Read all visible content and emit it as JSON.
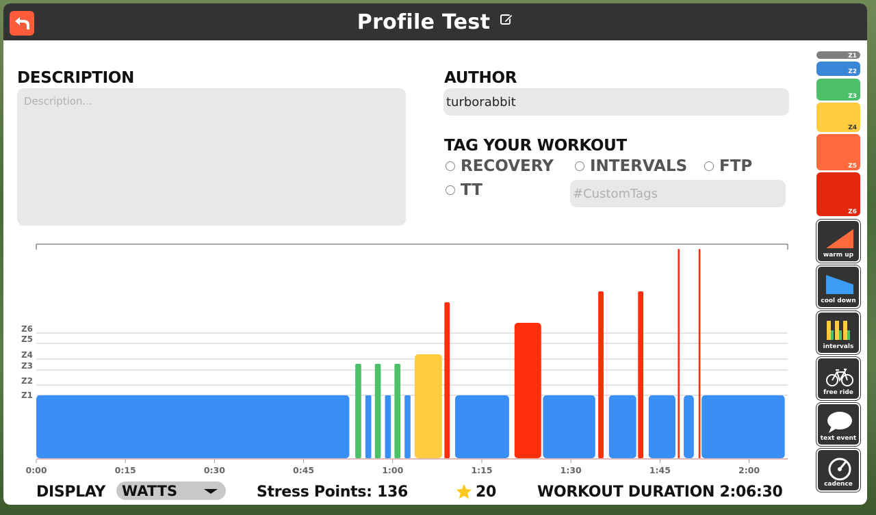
{
  "header": {
    "title": "Profile Test"
  },
  "description": {
    "label": "DESCRIPTION",
    "placeholder": "Description...",
    "value": ""
  },
  "author": {
    "label": "AUTHOR",
    "value": "turborabbit"
  },
  "tags": {
    "label": "TAG YOUR WORKOUT",
    "options": [
      "RECOVERY",
      "INTERVALS",
      "FTP",
      "TT"
    ],
    "custom_placeholder": "#CustomTags"
  },
  "footer": {
    "display_label": "DISPLAY",
    "display_value": "WATTS",
    "stress_points": "Stress Points: 136",
    "stars": "20",
    "duration": "WORKOUT DURATION 2:06:30"
  },
  "palette": {
    "zones": [
      "Z1",
      "Z2",
      "Z3",
      "Z4",
      "Z5",
      "Z6"
    ],
    "tools": [
      "warm up",
      "cool down",
      "intervals",
      "free ride",
      "text event",
      "cadence"
    ]
  },
  "colors": {
    "z1": "#7f7f7f",
    "z2": "#3a87d9",
    "z3": "#4cc069",
    "z4": "#ffcc3f",
    "z5": "#ff6a3d",
    "z6": "#e3280f",
    "bar_blue": "#3a8ff5",
    "accent": "#fc5c3a"
  },
  "chart_data": {
    "type": "bar",
    "x_unit": "minutes",
    "x_ticks": [
      "0:00",
      "0:15",
      "0:30",
      "0:45",
      "1:00",
      "1:15",
      "1:30",
      "1:45",
      "2:00"
    ],
    "y_zone_labels": [
      "Z1",
      "Z2",
      "Z3",
      "Z4",
      "Z5",
      "Z6"
    ],
    "xlim": [
      0,
      126.5
    ],
    "segments": [
      {
        "start": 0.0,
        "end": 52.7,
        "zone": "Z1",
        "level": 1.0
      },
      {
        "start": 53.7,
        "end": 54.7,
        "zone": "Z3",
        "level": 1.6
      },
      {
        "start": 55.4,
        "end": 56.4,
        "zone": "Z1",
        "level": 1.0
      },
      {
        "start": 57.0,
        "end": 58.0,
        "zone": "Z3",
        "level": 1.6
      },
      {
        "start": 58.7,
        "end": 59.7,
        "zone": "Z1",
        "level": 1.0
      },
      {
        "start": 60.3,
        "end": 61.3,
        "zone": "Z3",
        "level": 1.6
      },
      {
        "start": 62.0,
        "end": 63.0,
        "zone": "Z1",
        "level": 1.0
      },
      {
        "start": 63.7,
        "end": 68.3,
        "zone": "Z4",
        "level": 2.05
      },
      {
        "start": 68.7,
        "end": 69.6,
        "zone": "Z6",
        "level": 3.1
      },
      {
        "start": 70.5,
        "end": 79.6,
        "zone": "Z1",
        "level": 1.0
      },
      {
        "start": 80.5,
        "end": 85.0,
        "zone": "Z6",
        "level": 2.7
      },
      {
        "start": 85.3,
        "end": 94.1,
        "zone": "Z1",
        "level": 1.0
      },
      {
        "start": 94.6,
        "end": 95.5,
        "zone": "Z6",
        "level": 3.2
      },
      {
        "start": 96.4,
        "end": 101.0,
        "zone": "Z1",
        "level": 1.0
      },
      {
        "start": 101.3,
        "end": 102.2,
        "zone": "Z6",
        "level": 3.2
      },
      {
        "start": 103.1,
        "end": 107.6,
        "zone": "Z1",
        "level": 1.0
      },
      {
        "start": 108.0,
        "end": 108.3,
        "zone": "Z6",
        "level": 4.1
      },
      {
        "start": 109.0,
        "end": 110.7,
        "zone": "Z1",
        "level": 1.0
      },
      {
        "start": 111.5,
        "end": 111.8,
        "zone": "Z6",
        "level": 4.1
      },
      {
        "start": 112.0,
        "end": 126.0,
        "zone": "Z1",
        "level": 1.0
      }
    ],
    "ylim": [
      0,
      4.3
    ],
    "grid": true
  }
}
